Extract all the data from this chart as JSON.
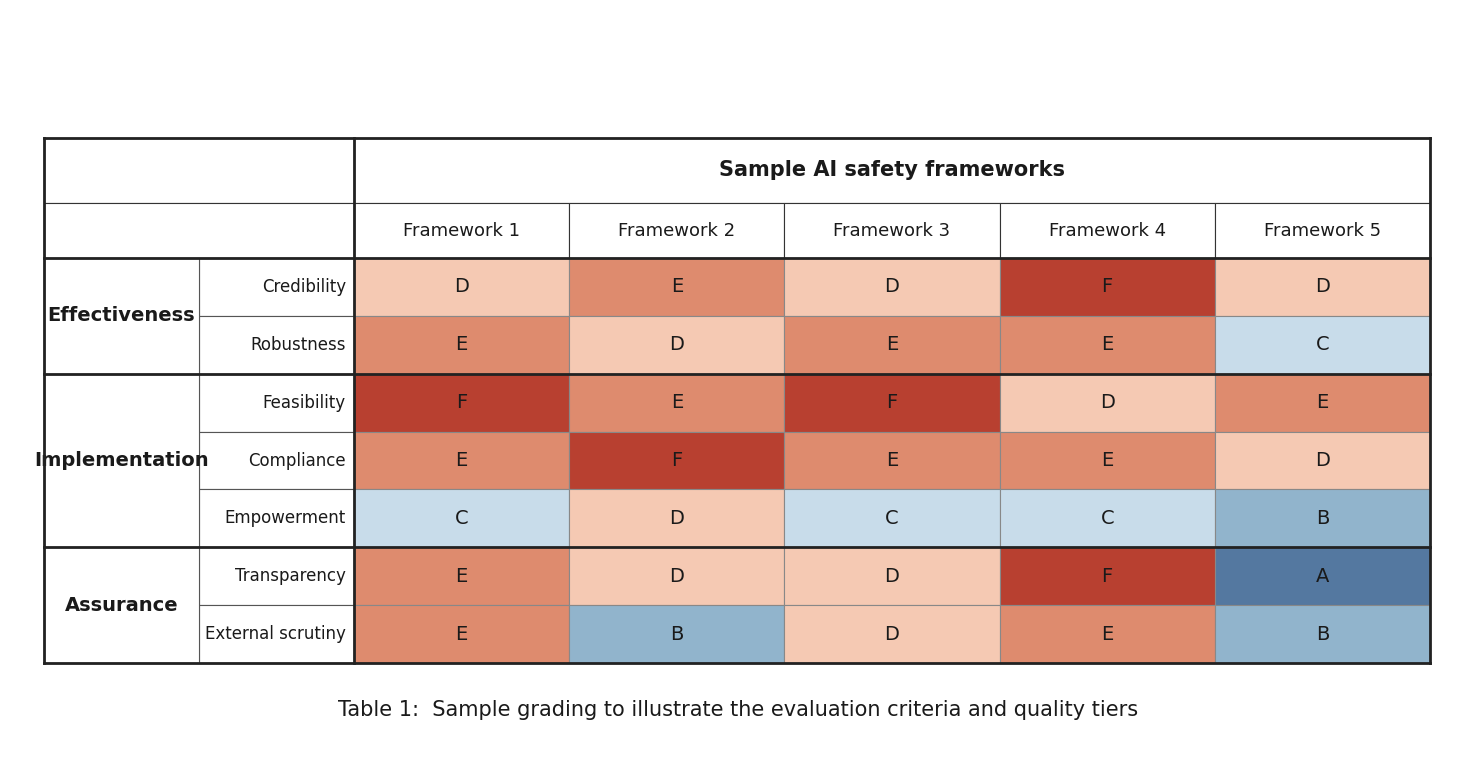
{
  "title": "Table 1:  Sample grading to illustrate the evaluation criteria and quality tiers",
  "header_main": "Sample AI safety frameworks",
  "frameworks": [
    "Framework 1",
    "Framework 2",
    "Framework 3",
    "Framework 4",
    "Framework 5"
  ],
  "categories": [
    {
      "group": "Effectiveness",
      "criteria": "Credibility"
    },
    {
      "group": "Effectiveness",
      "criteria": "Robustness"
    },
    {
      "group": "Implementation",
      "criteria": "Feasibility"
    },
    {
      "group": "Implementation",
      "criteria": "Compliance"
    },
    {
      "group": "Implementation",
      "criteria": "Empowerment"
    },
    {
      "group": "Assurance",
      "criteria": "Transparency"
    },
    {
      "group": "Assurance",
      "criteria": "External scrutiny"
    }
  ],
  "grades": [
    [
      "D",
      "E",
      "D",
      "F",
      "D"
    ],
    [
      "E",
      "D",
      "E",
      "E",
      "C"
    ],
    [
      "F",
      "E",
      "F",
      "D",
      "E"
    ],
    [
      "E",
      "F",
      "E",
      "E",
      "D"
    ],
    [
      "C",
      "D",
      "C",
      "C",
      "B"
    ],
    [
      "E",
      "D",
      "D",
      "F",
      "A"
    ],
    [
      "E",
      "B",
      "D",
      "E",
      "B"
    ]
  ],
  "grade_colors": {
    "A": "#5478a0",
    "B": "#91b4cc",
    "C": "#c8dcea",
    "D": "#f5c9b3",
    "E": "#de8b6e",
    "F": "#b84030"
  },
  "group_spans": {
    "Effectiveness": [
      0,
      1
    ],
    "Implementation": [
      2,
      4
    ],
    "Assurance": [
      5,
      6
    ]
  },
  "group_border_rows": [
    2,
    5
  ],
  "bg_color": "#ffffff",
  "border_thin": 0.8,
  "border_thick": 2.0,
  "title_fontsize": 15,
  "cell_fontsize": 14,
  "header_fontsize": 13,
  "criteria_fontsize": 12,
  "group_fontsize": 13
}
